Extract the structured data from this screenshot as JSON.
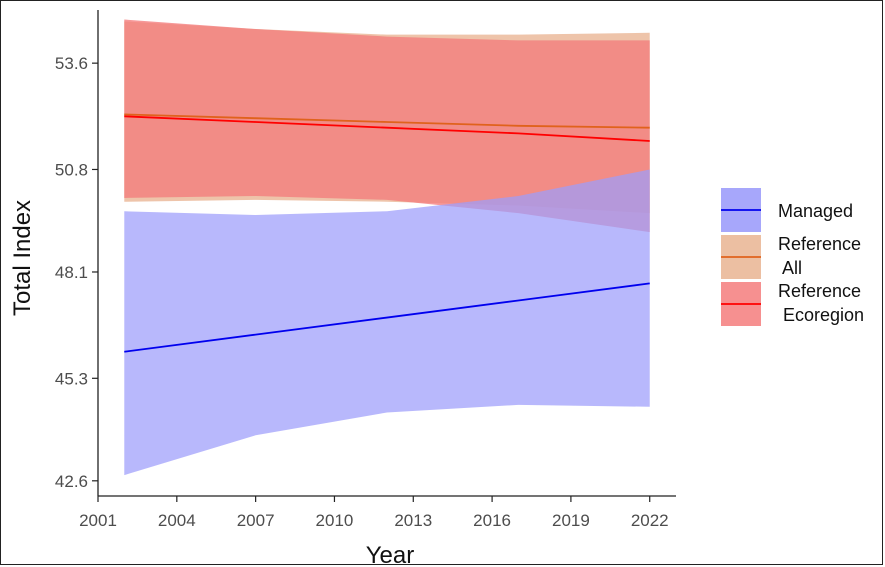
{
  "chart_data": {
    "type": "line",
    "title": "",
    "xlabel": "Year",
    "ylabel": "Total Index",
    "xlim": [
      2001,
      2023
    ],
    "ylim": [
      42.2,
      55.0
    ],
    "x_ticks": [
      2001,
      2004,
      2007,
      2010,
      2013,
      2016,
      2019,
      2022
    ],
    "x_tick_labels": [
      "2001",
      "2004",
      "2007",
      "2010",
      "2013",
      "2016",
      "2019",
      "2022"
    ],
    "y_ticks": [
      42.6,
      45.3,
      48.1,
      50.8,
      53.6
    ],
    "y_tick_labels": [
      "42.6",
      "45.3",
      "48.1",
      "50.8",
      "53.6"
    ],
    "grid": false,
    "legend_position": "right",
    "series": [
      {
        "name": "Reference All",
        "legend_lines": [
          "Reference",
          " All"
        ],
        "line_color": "#e0621c",
        "band_color": "#e9b492",
        "x": [
          2002,
          2007,
          2012,
          2017,
          2022
        ],
        "y": [
          52.25,
          52.15,
          52.05,
          51.95,
          51.9
        ],
        "lower": [
          49.95,
          50.0,
          49.95,
          49.85,
          49.65
        ],
        "upper": [
          54.7,
          54.5,
          54.35,
          54.35,
          54.4
        ]
      },
      {
        "name": "Reference Ecoregion",
        "legend_lines": [
          "Reference",
          " Ecoregion"
        ],
        "line_color": "#ff0000",
        "band_color": "#f47c7c",
        "x": [
          2002,
          2007,
          2012,
          2017,
          2022
        ],
        "y": [
          52.2,
          52.05,
          51.9,
          51.75,
          51.55
        ],
        "lower": [
          50.05,
          50.1,
          50.0,
          49.65,
          49.15
        ],
        "upper": [
          54.75,
          54.5,
          54.3,
          54.2,
          54.2
        ]
      },
      {
        "name": "Managed",
        "legend_lines": [
          "Managed"
        ],
        "line_color": "#0000ee",
        "band_color": "#9d9dfb",
        "x": [
          2002,
          2007,
          2012,
          2017,
          2022
        ],
        "y": [
          46.0,
          46.45,
          46.9,
          47.35,
          47.8
        ],
        "lower": [
          42.75,
          43.8,
          44.4,
          44.6,
          44.55
        ],
        "upper": [
          49.7,
          49.6,
          49.7,
          50.1,
          50.8
        ]
      }
    ],
    "legend_order": [
      "Managed",
      "Reference All",
      "Reference Ecoregion"
    ]
  }
}
